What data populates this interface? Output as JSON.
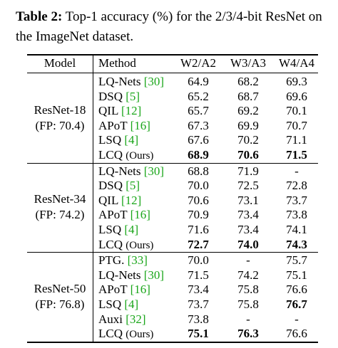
{
  "caption": {
    "label": "Table 2:",
    "text": " Top-1 accuracy (%) for the 2/3/4-bit ResNet on the ImageNet dataset."
  },
  "colors": {
    "reference_link": "#1aa61a",
    "text": "#000000"
  },
  "table": {
    "headers": {
      "model": "Model",
      "method": "Method",
      "c1": "W2/A2",
      "c2": "W3/A3",
      "c3": "W4/A4"
    },
    "groups": [
      {
        "model_line1": "ResNet-18",
        "model_line2": "(FP: 70.4)",
        "rows": [
          {
            "name": "LQ-Nets ",
            "ref": "[30]",
            "v1": "64.9",
            "v2": "68.2",
            "v3": "69.3",
            "b1": false,
            "b2": false,
            "b3": false,
            "ours": false
          },
          {
            "name": "DSQ ",
            "ref": "[5]",
            "v1": "65.2",
            "v2": "68.7",
            "v3": "69.6",
            "b1": false,
            "b2": false,
            "b3": false,
            "ours": false
          },
          {
            "name": "QIL ",
            "ref": "[12]",
            "v1": "65.7",
            "v2": "69.2",
            "v3": "70.1",
            "b1": false,
            "b2": false,
            "b3": false,
            "ours": false
          },
          {
            "name": "APoT ",
            "ref": "[16]",
            "v1": "67.3",
            "v2": "69.9",
            "v3": "70.7",
            "b1": false,
            "b2": false,
            "b3": false,
            "ours": false
          },
          {
            "name": "LSQ ",
            "ref": "[4]",
            "v1": "67.6",
            "v2": "70.2",
            "v3": "71.1",
            "b1": false,
            "b2": false,
            "b3": false,
            "ours": false
          },
          {
            "name": "LCQ ",
            "ref": "",
            "suffix": "(Ours)",
            "v1": "68.9",
            "v2": "70.6",
            "v3": "71.5",
            "b1": true,
            "b2": true,
            "b3": true,
            "ours": true
          }
        ]
      },
      {
        "model_line1": "ResNet-34",
        "model_line2": "(FP: 74.2)",
        "rows": [
          {
            "name": "LQ-Nets ",
            "ref": "[30]",
            "v1": "68.8",
            "v2": "71.9",
            "v3": "-",
            "b1": false,
            "b2": false,
            "b3": false,
            "ours": false
          },
          {
            "name": "DSQ ",
            "ref": "[5]",
            "v1": "70.0",
            "v2": "72.5",
            "v3": "72.8",
            "b1": false,
            "b2": false,
            "b3": false,
            "ours": false
          },
          {
            "name": "QIL ",
            "ref": "[12]",
            "v1": "70.6",
            "v2": "73.1",
            "v3": "73.7",
            "b1": false,
            "b2": false,
            "b3": false,
            "ours": false
          },
          {
            "name": "APoT ",
            "ref": "[16]",
            "v1": "70.9",
            "v2": "73.4",
            "v3": "73.8",
            "b1": false,
            "b2": false,
            "b3": false,
            "ours": false
          },
          {
            "name": "LSQ ",
            "ref": "[4]",
            "v1": "71.6",
            "v2": "73.4",
            "v3": "74.1",
            "b1": false,
            "b2": false,
            "b3": false,
            "ours": false
          },
          {
            "name": "LCQ ",
            "ref": "",
            "suffix": "(Ours)",
            "v1": "72.7",
            "v2": "74.0",
            "v3": "74.3",
            "b1": true,
            "b2": true,
            "b3": true,
            "ours": true
          }
        ]
      },
      {
        "model_line1": "ResNet-50",
        "model_line2": "(FP: 76.8)",
        "rows": [
          {
            "name": "PTG. ",
            "ref": "[33]",
            "v1": "70.0",
            "v2": "-",
            "v3": "75.7",
            "b1": false,
            "b2": false,
            "b3": false,
            "ours": false
          },
          {
            "name": "LQ-Nets ",
            "ref": "[30]",
            "v1": "71.5",
            "v2": "74.2",
            "v3": "75.1",
            "b1": false,
            "b2": false,
            "b3": false,
            "ours": false
          },
          {
            "name": "APoT ",
            "ref": "[16]",
            "v1": "73.4",
            "v2": "75.8",
            "v3": "76.6",
            "b1": false,
            "b2": false,
            "b3": false,
            "ours": false
          },
          {
            "name": "LSQ ",
            "ref": "[4]",
            "v1": "73.7",
            "v2": "75.8",
            "v3": "76.7",
            "b1": false,
            "b2": false,
            "b3": true,
            "ours": false
          },
          {
            "name": "Auxi ",
            "ref": "[32]",
            "v1": "73.8",
            "v2": "-",
            "v3": "-",
            "b1": false,
            "b2": false,
            "b3": false,
            "ours": false
          },
          {
            "name": "LCQ ",
            "ref": "",
            "suffix": "(Ours)",
            "v1": "75.1",
            "v2": "76.3",
            "v3": "76.6",
            "b1": true,
            "b2": true,
            "b3": false,
            "ours": true
          }
        ]
      }
    ]
  }
}
